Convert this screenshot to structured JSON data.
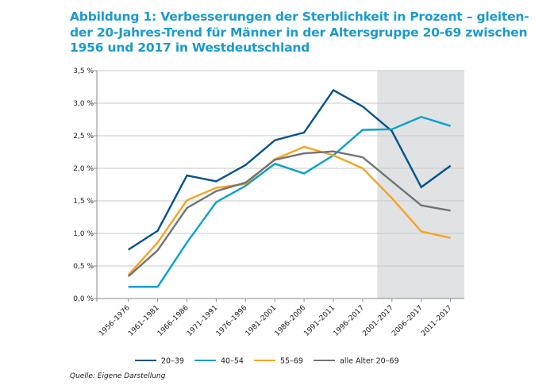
{
  "title_lines": [
    "Abbildung 1: Verbesserungen der Sterblichkeit in Prozent – gleiten-",
    "der 20-Jahres-Trend für Männer in der Altersgruppe 20-69 zwischen",
    "1956 und 2017 in Westdeutschland"
  ],
  "source": "Quelle: Eigene Darstellung",
  "chart_data": {
    "type": "line",
    "categories": [
      "1956–1976",
      "1961–1981",
      "1966–1986",
      "1971–1991",
      "1976–1996",
      "1981–2001",
      "1986–2006",
      "1991–2011",
      "1996–2017",
      "2001–2017",
      "2006–2017",
      "2011–2017"
    ],
    "ylim": [
      0,
      3.5
    ],
    "yticks": [
      0,
      0.5,
      1.0,
      1.5,
      2.0,
      2.5,
      3.0,
      3.5
    ],
    "ytick_labels": [
      "0,0 %",
      "0,5 %",
      "1,0 %",
      "1,5 %",
      "2,0 %",
      "2,5 %",
      "3,0 %",
      "3,5 %"
    ],
    "unit": "%",
    "grid": "horizontal",
    "legend_position": "bottom",
    "shaded_region": {
      "from_category": "2001–2017",
      "to_category": "2011–2017",
      "color": "#e1e2e4"
    },
    "series": [
      {
        "name": "20–39",
        "color": "#00548a",
        "values": [
          0.75,
          1.04,
          1.89,
          1.8,
          2.05,
          2.43,
          2.55,
          3.2,
          2.95,
          2.57,
          1.71,
          2.04
        ]
      },
      {
        "name": "40–54",
        "color": "#0aa0cf",
        "values": [
          0.18,
          0.18,
          0.86,
          1.48,
          1.73,
          2.07,
          1.92,
          2.2,
          2.59,
          2.6,
          2.79,
          2.65
        ]
      },
      {
        "name": "55–69",
        "color": "#f8a31e",
        "values": [
          0.36,
          0.86,
          1.51,
          1.7,
          1.76,
          2.14,
          2.33,
          2.2,
          2.0,
          1.54,
          1.03,
          0.93
        ]
      },
      {
        "name": "alle Alter 20–69",
        "color": "#6f7478",
        "values": [
          0.34,
          0.74,
          1.39,
          1.65,
          1.78,
          2.13,
          2.23,
          2.26,
          2.17,
          1.8,
          1.43,
          1.35
        ]
      }
    ]
  }
}
